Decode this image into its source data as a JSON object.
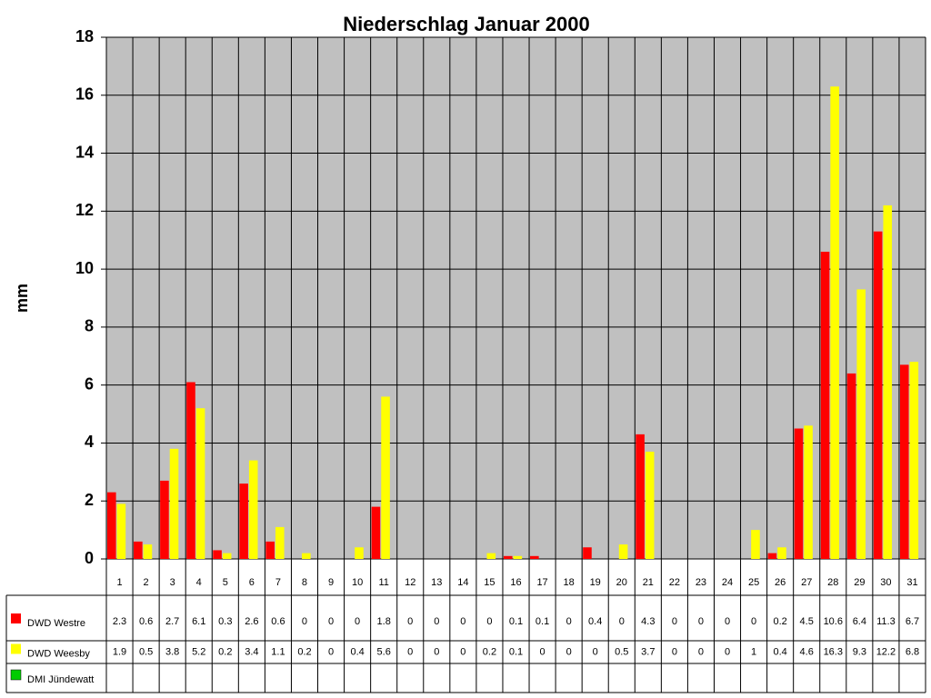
{
  "chart_data": {
    "type": "bar",
    "title": "Niederschlag Januar 2000",
    "y_label": "mm",
    "categories": [
      "1",
      "2",
      "3",
      "4",
      "5",
      "6",
      "7",
      "8",
      "9",
      "10",
      "11",
      "12",
      "13",
      "14",
      "15",
      "16",
      "17",
      "18",
      "19",
      "20",
      "21",
      "22",
      "23",
      "24",
      "25",
      "26",
      "27",
      "28",
      "29",
      "30",
      "31"
    ],
    "series": [
      {
        "name": "DWD Westre",
        "color": "#ff0000",
        "values": [
          2.3,
          0.6,
          2.7,
          6.1,
          0.3,
          2.6,
          0.6,
          0,
          0,
          0,
          1.8,
          0,
          0,
          0,
          0,
          0.1,
          0.1,
          0,
          0.4,
          0,
          4.3,
          0,
          0,
          0,
          0,
          0.2,
          4.5,
          10.6,
          6.4,
          11.3,
          6.7
        ]
      },
      {
        "name": "DWD Weesby",
        "color": "#ffff00",
        "values": [
          1.9,
          0.5,
          3.8,
          5.2,
          0.2,
          3.4,
          1.1,
          0.2,
          0,
          0.4,
          5.6,
          0,
          0,
          0,
          0.2,
          0.1,
          0,
          0,
          0,
          0.5,
          3.7,
          0,
          0,
          0,
          1,
          0.4,
          4.6,
          16.3,
          9.3,
          12.2,
          6.8
        ]
      },
      {
        "name": "DMI Jündewatt",
        "color": "#00cc00",
        "values": [
          null,
          null,
          null,
          null,
          null,
          null,
          null,
          null,
          null,
          null,
          null,
          null,
          null,
          null,
          null,
          null,
          null,
          null,
          null,
          null,
          null,
          null,
          null,
          null,
          null,
          null,
          null,
          null,
          null,
          null,
          null
        ]
      }
    ],
    "ylim": [
      0,
      18
    ],
    "yticks": [
      0,
      2,
      4,
      6,
      8,
      10,
      12,
      14,
      16,
      18
    ],
    "grid": true
  }
}
